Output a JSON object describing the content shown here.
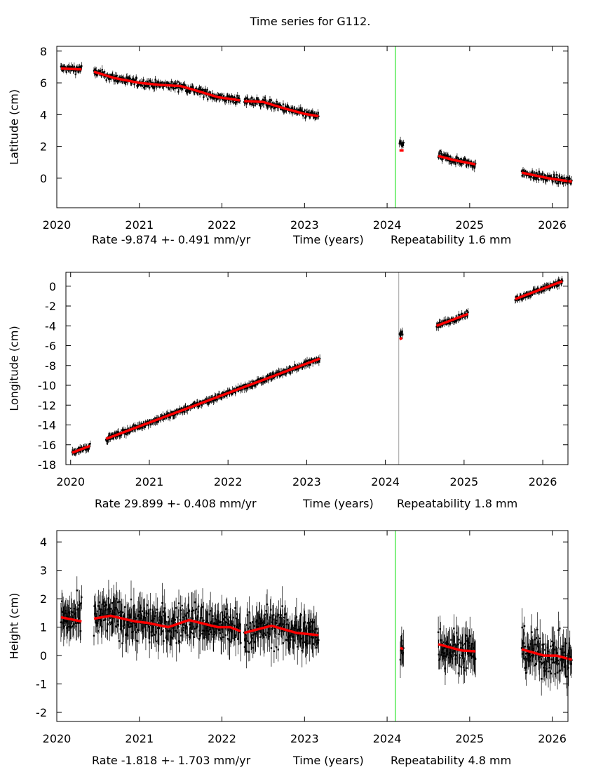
{
  "title": "Time series for G112.",
  "chart_data": [
    {
      "type": "scatter",
      "ylabel": "Latitude (cm)",
      "xlabel": "Time (years)",
      "rate_text": "Rate -9.874 +- 0.491 mm/yr",
      "repeatability_text": "Repeatability 1.6 mm",
      "xlim": [
        2020.0,
        2026.19
      ],
      "ylim": [
        -1.86,
        8.3
      ],
      "xticks": [
        2020,
        2021,
        2022,
        2023,
        2024,
        2025,
        2026
      ],
      "yticks": [
        0,
        2,
        4,
        6,
        8
      ],
      "marker_line": {
        "x": 2024.1,
        "color": "#00e000"
      },
      "obs_spread": 0.18,
      "colors": {
        "observations": "#000000",
        "model": "#ff0000"
      },
      "segments": [
        {
          "model": [
            [
              2020.05,
              6.9
            ],
            [
              2020.3,
              6.85
            ]
          ],
          "obs_offset": 0
        },
        {
          "model": [
            [
              2020.45,
              6.7
            ],
            [
              2020.7,
              6.3
            ],
            [
              2021.0,
              6.0
            ],
            [
              2021.25,
              5.87
            ],
            [
              2021.5,
              5.8
            ],
            [
              2021.7,
              5.5
            ],
            [
              2021.95,
              5.1
            ],
            [
              2022.22,
              4.9
            ]
          ],
          "obs_offset": 0
        },
        {
          "model": [
            [
              2022.27,
              4.85
            ],
            [
              2022.5,
              4.8
            ],
            [
              2022.75,
              4.4
            ],
            [
              2023.0,
              4.05
            ],
            [
              2023.17,
              3.9
            ]
          ],
          "obs_offset": 0
        },
        {
          "model": [
            [
              2024.15,
              1.75
            ],
            [
              2024.2,
              1.75
            ]
          ],
          "obs_offset": 0.45
        },
        {
          "model": [
            [
              2024.62,
              1.4
            ],
            [
              2024.8,
              1.15
            ],
            [
              2025.07,
              0.87
            ]
          ],
          "obs_offset": 0
        },
        {
          "model": [
            [
              2025.63,
              0.35
            ],
            [
              2025.95,
              0.0
            ],
            [
              2026.24,
              -0.22
            ]
          ],
          "obs_offset": 0
        }
      ]
    },
    {
      "type": "scatter",
      "ylabel": "Longitude (cm)",
      "xlabel": "Time (years)",
      "rate_text": "Rate 29.899 +- 0.408 mm/yr",
      "repeatability_text": "Repeatability 1.8 mm",
      "xlim": [
        2019.94,
        2026.32
      ],
      "ylim": [
        -18.0,
        1.4
      ],
      "xticks": [
        2020,
        2021,
        2022,
        2023,
        2024,
        2025,
        2026
      ],
      "yticks": [
        -18,
        -16,
        -14,
        -12,
        -10,
        -8,
        -6,
        -4,
        -2,
        0
      ],
      "marker_line": {
        "x": 2024.17,
        "color": "#a0a0a0"
      },
      "obs_spread": 0.18,
      "colors": {
        "observations": "#000000",
        "model": "#ff0000"
      },
      "segments": [
        {
          "model": [
            [
              2020.02,
              -16.8
            ],
            [
              2020.25,
              -16.1
            ]
          ],
          "obs_offset": 0
        },
        {
          "model": [
            [
              2020.45,
              -15.4
            ],
            [
              2023.17,
              -7.3
            ]
          ],
          "obs_offset": 0
        },
        {
          "model": [
            [
              2024.18,
              -5.35
            ],
            [
              2024.22,
              -5.2
            ]
          ],
          "obs_offset": 0.5
        },
        {
          "model": [
            [
              2024.65,
              -4.0
            ],
            [
              2025.05,
              -2.8
            ]
          ],
          "obs_offset": 0
        },
        {
          "model": [
            [
              2025.65,
              -1.3
            ],
            [
              2026.25,
              0.5
            ]
          ],
          "obs_offset": 0
        }
      ]
    },
    {
      "type": "scatter",
      "ylabel": "Height (cm)",
      "xlabel": "Time (years)",
      "rate_text": "Rate -1.818 +- 1.703 mm/yr",
      "repeatability_text": "Repeatability 4.8 mm",
      "xlim": [
        2020.0,
        2026.19
      ],
      "ylim": [
        -2.32,
        4.4
      ],
      "xticks": [
        2020,
        2021,
        2022,
        2023,
        2024,
        2025,
        2026
      ],
      "yticks": [
        -2,
        -1,
        0,
        1,
        2,
        3,
        4
      ],
      "marker_line": {
        "x": 2024.1,
        "color": "#00e000"
      },
      "obs_spread": 0.5,
      "colors": {
        "observations": "#000000",
        "model": "#ff0000"
      },
      "segments": [
        {
          "model": [
            [
              2020.05,
              1.35
            ],
            [
              2020.3,
              1.2
            ]
          ],
          "obs_offset": 0
        },
        {
          "model": [
            [
              2020.45,
              1.3
            ],
            [
              2020.65,
              1.4
            ],
            [
              2020.95,
              1.2
            ],
            [
              2021.1,
              1.15
            ],
            [
              2021.35,
              1.0
            ],
            [
              2021.6,
              1.25
            ],
            [
              2021.95,
              1.0
            ],
            [
              2022.1,
              1.0
            ],
            [
              2022.23,
              0.85
            ]
          ],
          "obs_offset": 0
        },
        {
          "model": [
            [
              2022.27,
              0.8
            ],
            [
              2022.6,
              1.05
            ],
            [
              2022.9,
              0.8
            ],
            [
              2023.17,
              0.72
            ]
          ],
          "obs_offset": 0
        },
        {
          "model": [
            [
              2024.16,
              0.27
            ],
            [
              2024.2,
              0.22
            ]
          ],
          "obs_offset": 0
        },
        {
          "model": [
            [
              2024.62,
              0.4
            ],
            [
              2024.9,
              0.18
            ],
            [
              2025.07,
              0.15
            ]
          ],
          "obs_offset": 0
        },
        {
          "model": [
            [
              2025.63,
              0.22
            ],
            [
              2025.9,
              0.0
            ],
            [
              2026.05,
              0.0
            ],
            [
              2026.24,
              -0.15
            ]
          ],
          "obs_offset": 0
        }
      ]
    }
  ]
}
